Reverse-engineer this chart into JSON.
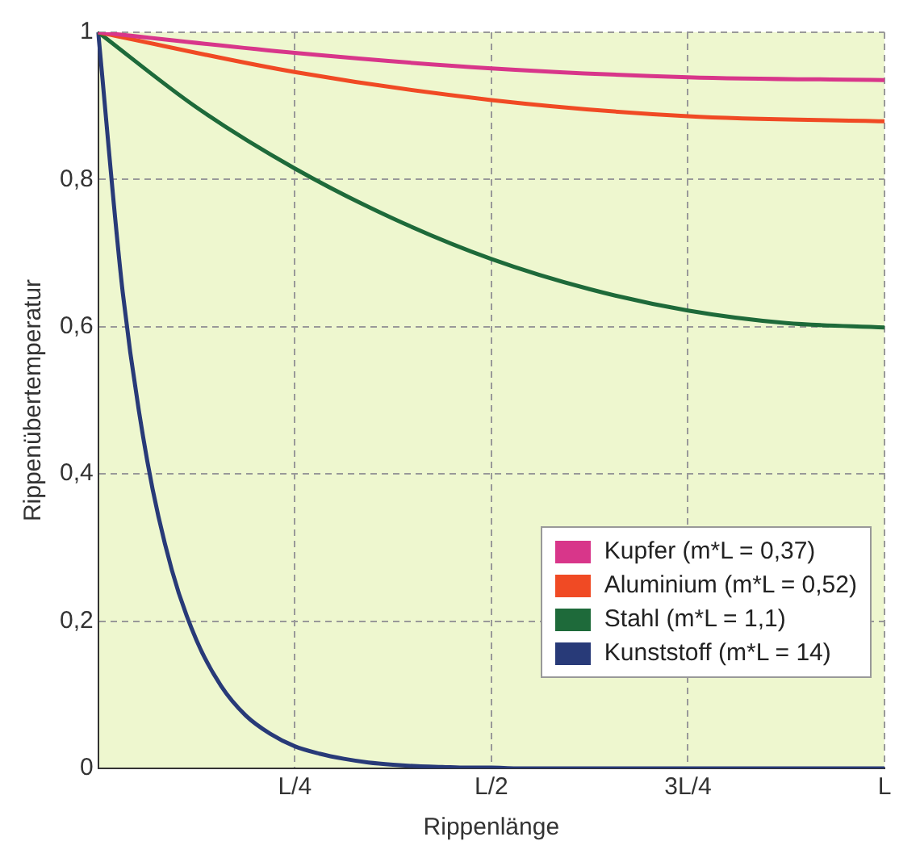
{
  "chart_data": {
    "type": "line",
    "xlabel": "Rippenlänge",
    "ylabel": "Rippenübertemperatur",
    "categories": [
      null,
      null,
      null,
      null,
      null,
      null,
      null,
      null,
      "L/4",
      null,
      null,
      null,
      null,
      null,
      null,
      null,
      "L/2",
      null,
      null,
      null,
      null,
      null,
      null,
      null,
      "3L/4",
      null,
      null,
      null,
      null,
      null,
      null,
      null,
      "L"
    ],
    "ylim": [
      0,
      1
    ],
    "yticks": [
      {
        "value": 0,
        "label": "0"
      },
      {
        "value": 0.2,
        "label": "0,2"
      },
      {
        "value": 0.4,
        "label": "0,4"
      },
      {
        "value": 0.6,
        "label": "0,6"
      },
      {
        "value": 0.8,
        "label": "0,8"
      },
      {
        "value": 1,
        "label": "1"
      }
    ],
    "grid": true,
    "legend": "bottom right",
    "marker": "none",
    "line_style": "solid",
    "series": [
      {
        "name": "Kupfer (m*L = 0,37)",
        "color": "#d8368a",
        "values": [
          1,
          null,
          null,
          null,
          null,
          null,
          null,
          null,
          0.972,
          null,
          null,
          null,
          null,
          null,
          null,
          null,
          0.951,
          null,
          null,
          null,
          null,
          null,
          null,
          null,
          0.939,
          null,
          null,
          null,
          null,
          null,
          null,
          null,
          0.935
        ]
      },
      {
        "name": "Aluminium (m*L = 0,52)",
        "color": "#f04a24",
        "values": [
          1,
          null,
          null,
          null,
          null,
          null,
          null,
          null,
          0.946,
          null,
          null,
          null,
          null,
          null,
          null,
          null,
          0.908,
          null,
          null,
          null,
          null,
          null,
          null,
          null,
          0.886,
          null,
          null,
          null,
          null,
          null,
          null,
          null,
          0.879
        ]
      },
      {
        "name": "Stahl (m*L = 1,1)",
        "color": "#1e6a3a",
        "values": [
          1,
          null,
          null,
          null,
          0.898,
          null,
          null,
          null,
          0.815,
          null,
          null,
          null,
          0.747,
          null,
          null,
          null,
          0.692,
          null,
          null,
          null,
          0.651,
          null,
          null,
          null,
          0.622,
          null,
          null,
          null,
          0.605,
          null,
          null,
          null,
          0.599
        ]
      },
      {
        "name": "Kunststoff (m*L = 14)",
        "color": "#283a78",
        "values": [
          1,
          0.646,
          0.417,
          0.269,
          0.174,
          0.112,
          0.072,
          0.047,
          0.03,
          0.02,
          0.013,
          0.008,
          0.005,
          0.003,
          0.002,
          0.001,
          0.001,
          0,
          0,
          0,
          0,
          0,
          0,
          0,
          0,
          0,
          0,
          0,
          0,
          0,
          0,
          0,
          0
        ]
      }
    ]
  }
}
